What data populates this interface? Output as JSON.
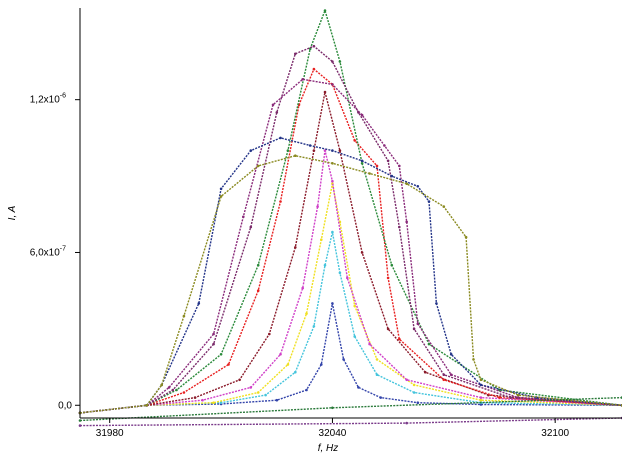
{
  "chart_data": {
    "type": "line",
    "title": "",
    "xlabel": "f, Hz",
    "ylabel": "I, A",
    "xlim": [
      31972,
      32118
    ],
    "ylim": [
      -5e-08,
      1.56e-06
    ],
    "x_ticks": [
      31980,
      32040,
      32100
    ],
    "x_tick_labels": [
      "31980",
      "32040",
      "32100"
    ],
    "y_ticks": [
      0,
      6e-07,
      1.2e-06
    ],
    "y_tick_labels": [
      "0,0",
      "6,0x10",
      "1,2x10"
    ],
    "y_tick_exponent": "-7",
    "y_tick_exponent_top": "-6",
    "grid": false,
    "legend": "none",
    "series": [
      {
        "color": "#3344aa",
        "x": [
          31972,
          31990,
          32010,
          32025,
          32033,
          32037,
          32040,
          32043,
          32047,
          32053,
          32063,
          32080,
          32118
        ],
        "y": [
          -3e-08,
          0,
          5e-09,
          2e-08,
          6e-08,
          1.6e-07,
          4e-07,
          1.8e-07,
          7e-08,
          3e-08,
          1e-08,
          3e-09,
          0
        ]
      },
      {
        "color": "#44c4dc",
        "x": [
          31972,
          31990,
          32010,
          32022,
          32030,
          32035,
          32038,
          32040,
          32042,
          32046,
          32052,
          32062,
          32080,
          32118
        ],
        "y": [
          -3e-08,
          0,
          1e-08,
          4e-08,
          1.3e-07,
          3.1e-07,
          5.5e-07,
          6.8e-07,
          5.2e-07,
          2.7e-07,
          1.2e-07,
          5e-08,
          1e-08,
          0
        ]
      },
      {
        "color": "#f0e020",
        "x": [
          31972,
          31990,
          32008,
          32020,
          32028,
          32033,
          32037,
          32040,
          32042,
          32046,
          32052,
          32062,
          32080,
          32118
        ],
        "y": [
          -3e-08,
          0,
          1e-08,
          5e-08,
          1.6e-07,
          3.6e-07,
          6.5e-07,
          8.7e-07,
          7.2e-07,
          3.9e-07,
          1.8e-07,
          8e-08,
          2e-08,
          0
        ]
      },
      {
        "color": "#d040c8",
        "x": [
          31972,
          31990,
          32005,
          32018,
          32026,
          32032,
          32036,
          32038,
          32040,
          32044,
          32050,
          32060,
          32080,
          32118
        ],
        "y": [
          -3e-08,
          0,
          2e-08,
          7e-08,
          2e-07,
          4.6e-07,
          7.8e-07,
          1e-06,
          8.8e-07,
          5e-07,
          2.4e-07,
          1e-07,
          3e-08,
          0
        ]
      },
      {
        "color": "#8a1a2a",
        "x": [
          31972,
          31990,
          32003,
          32015,
          32023,
          32030,
          32035,
          32038,
          32042,
          32048,
          32055,
          32065,
          32082,
          32118
        ],
        "y": [
          -3e-08,
          0,
          3e-08,
          1e-07,
          2.8e-07,
          6.2e-07,
          1e-06,
          1.23e-06,
          1e-06,
          6e-07,
          3e-07,
          1.3e-07,
          4e-08,
          0
        ]
      },
      {
        "color": "#e82020",
        "x": [
          31972,
          31990,
          32000,
          32012,
          32020,
          32026,
          32031,
          32035,
          32040,
          32046,
          32052,
          32055,
          32058,
          32070,
          32085,
          32118
        ],
        "y": [
          -3e-08,
          0,
          5e-08,
          1.6e-07,
          4.5e-07,
          8e-07,
          1.18e-06,
          1.32e-06,
          1.26e-06,
          1.04e-06,
          9.4e-07,
          5e-07,
          2.6e-07,
          1e-07,
          3e-08,
          0
        ]
      },
      {
        "color": "#2a8a3a",
        "x": [
          31972,
          31990,
          31998,
          32010,
          32020,
          32028,
          32034,
          32038,
          32042,
          32048,
          32056,
          32066,
          32085,
          32118
        ],
        "y": [
          -3e-08,
          0,
          6e-08,
          2e-07,
          5.5e-07,
          1e-06,
          1.4e-06,
          1.55e-06,
          1.35e-06,
          9.5e-07,
          5.5e-07,
          2.4e-07,
          6e-08,
          0
        ]
      },
      {
        "color": "#7a2a6a",
        "x": [
          31972,
          31990,
          31997,
          32008,
          32018,
          32025,
          32030,
          32035,
          32040,
          32047,
          32055,
          32058,
          32062,
          32070,
          32088,
          32118
        ],
        "y": [
          -3e-08,
          0,
          6e-08,
          2.4e-07,
          7e-07,
          1.15e-06,
          1.38e-06,
          1.41e-06,
          1.35e-06,
          1.15e-06,
          9.6e-07,
          7e-07,
          3e-07,
          1.2e-07,
          3e-08,
          0
        ]
      },
      {
        "color": "#8a2a7a",
        "x": [
          31972,
          31990,
          31996,
          32008,
          32016,
          32024,
          32032,
          32040,
          32048,
          32054,
          32058,
          32060,
          32063,
          32072,
          32090,
          32118
        ],
        "y": [
          -3e-08,
          0,
          7e-08,
          2.8e-07,
          7.4e-07,
          1.18e-06,
          1.28e-06,
          1.26e-06,
          1.14e-06,
          1.02e-06,
          9.4e-07,
          7.2e-07,
          3.2e-07,
          1.2e-07,
          3e-08,
          0
        ]
      },
      {
        "color": "#223388",
        "x": [
          31972,
          31990,
          31994,
          32004,
          32010,
          32018,
          32026,
          32034,
          32040,
          32048,
          32056,
          32063,
          32066,
          32068,
          32072,
          32080,
          32095,
          32118
        ],
        "y": [
          -3e-08,
          0,
          8e-08,
          4e-07,
          8.5e-07,
          1e-06,
          1.05e-06,
          1.02e-06,
          1e-06,
          9.6e-07,
          9e-07,
          8.6e-07,
          8e-07,
          4e-07,
          2e-07,
          8e-08,
          3e-08,
          0
        ]
      },
      {
        "color": "#8a8a20",
        "x": [
          31972,
          31990,
          31994,
          32000,
          32010,
          32020,
          32030,
          32040,
          32050,
          32060,
          32070,
          32076,
          32078,
          32080,
          32090,
          32118
        ],
        "y": [
          -3e-08,
          0,
          8e-08,
          3.5e-07,
          8.2e-07,
          9.4e-07,
          9.8e-07,
          9.5e-07,
          9.1e-07,
          8.7e-07,
          7.8e-07,
          6.6e-07,
          1.8e-07,
          1e-07,
          4e-08,
          0
        ]
      },
      {
        "color": "#2a7a3a",
        "x": [
          31972,
          32040,
          32118
        ],
        "y": [
          -6e-08,
          -1e-08,
          3e-08
        ]
      },
      {
        "color": "#7a3a8a",
        "x": [
          31972,
          32060,
          32118
        ],
        "y": [
          -8e-08,
          -7e-08,
          -5e-08
        ]
      }
    ]
  }
}
